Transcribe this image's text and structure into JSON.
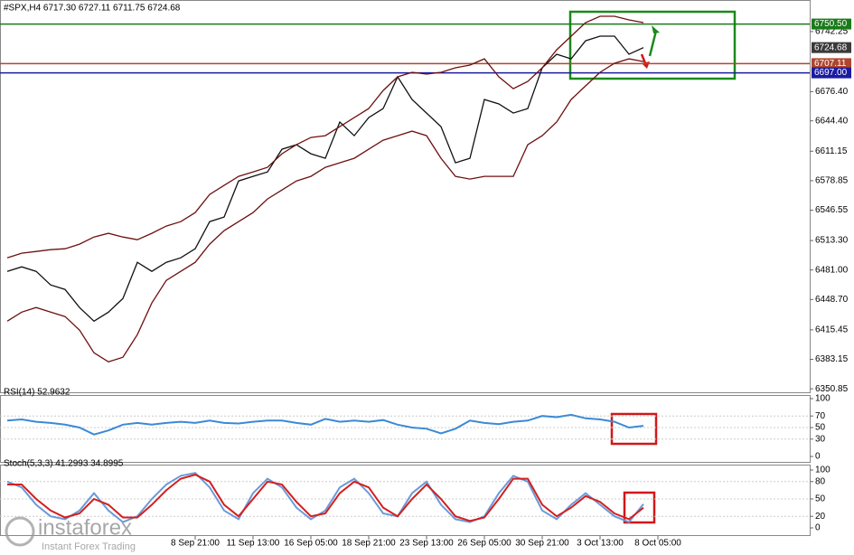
{
  "chart_data": [
    {
      "type": "line",
      "title": "#SPX,H4  6717.30 6727.11 6711.75 6724.68",
      "ylim": [
        6348,
        6759
      ],
      "yticks": [
        6742.25,
        {
          "value": 6676.4,
          "label": "6676.40"
        },
        {
          "value": 6644.4,
          "label": "6644.40"
        },
        6611.15,
        6578.85,
        6546.55,
        {
          "value": 6513.3,
          "label": "6513.30"
        },
        {
          "value": 6481,
          "label": "6481.00"
        },
        {
          "value": 6448.7,
          "label": "6448.70"
        },
        6415.45,
        6383.15,
        6350.85
      ],
      "hlines": [
        {
          "value": 6750.5,
          "label": "6750.50",
          "color": "#1a7a1a",
          "line": true
        },
        {
          "value": 6724.68,
          "label": "6724.68",
          "color": "#3a3a3a",
          "line": false
        },
        {
          "value": 6707.11,
          "label": "6707.11",
          "color": "#b0452e",
          "line": true
        },
        {
          "value": 6697,
          "label": "6697.00",
          "color": "#1c1ca0",
          "line": true
        }
      ],
      "series": [
        {
          "color": "#111111",
          "values": [
            6479.5,
            6484.5,
            6479.5,
            6464.7,
            6459.7,
            6439.9,
            6425.0,
            6434.9,
            6449.8,
            6489.4,
            6479.5,
            6489.4,
            6494.4,
            6504.3,
            6534.0,
            6539.0,
            6578.6,
            6583.6,
            6588.5,
            6613.3,
            6618.3,
            6608.4,
            6603.4,
            6643.1,
            6628.2,
            6648.0,
            6657.9,
            6692.6,
            6667.8,
            6652.9,
            6638.1,
            6598.5,
            6603.4,
            6667.8,
            6662.9,
            6652.9,
            6657.9,
            6702.5,
            6717.4,
            6712.4,
            6732.2,
            6737.2,
            6737.2,
            6717.4,
            6724.68,
            null
          ]
        },
        {
          "color": "#6e1010",
          "values": [
            6494.4,
            6499.4,
            6501.3,
            6503.3,
            6504.3,
            6509.3,
            6517.2,
            6521.2,
            6517.2,
            6514.2,
            6521.2,
            6529.1,
            6534.0,
            6543.9,
            6563.8,
            6573.7,
            6583.6,
            6588.5,
            6593.5,
            6608.4,
            6618.3,
            6626.2,
            6628.2,
            6638.1,
            6648.0,
            6657.9,
            6677.7,
            6692.6,
            6697.6,
            6695.6,
            6697.6,
            6702.5,
            6705.5,
            6712.4,
            6692.6,
            6679.7,
            6687.6,
            6702.5,
            6722.3,
            6737.2,
            6752.1,
            6759.0,
            6759.0,
            6755.0,
            6752.1,
            null
          ]
        },
        {
          "color": "#6e1010",
          "values": [
            6425.0,
            6434.9,
            6439.9,
            6434.9,
            6430.0,
            6415.1,
            6390.3,
            6380.4,
            6385.4,
            6410.2,
            6444.9,
            6469.6,
            6479.5,
            6489.4,
            6509.3,
            6524.1,
            6534.0,
            6543.9,
            6558.8,
            6568.7,
            6578.6,
            6583.6,
            6593.5,
            6598.5,
            6603.4,
            6613.3,
            6623.2,
            6628.2,
            6633.1,
            6628.2,
            6603.4,
            6583.6,
            6580.6,
            6583.6,
            6583.6,
            6583.6,
            6618.3,
            6628.2,
            6643.1,
            6667.8,
            6682.7,
            6697.6,
            6707.5,
            6712.4,
            6709.4,
            null
          ]
        }
      ]
    },
    {
      "type": "line",
      "title": "RSI(14) 52.9632",
      "ylim": [
        0,
        100
      ],
      "yticks": [
        100,
        70,
        50,
        30,
        0
      ],
      "series": [
        {
          "color": "#3a8ad6",
          "values": [
            62,
            64,
            60,
            58,
            55,
            50,
            38,
            45,
            55,
            58,
            55,
            58,
            60,
            58,
            62,
            58,
            57,
            60,
            62,
            62,
            58,
            55,
            65,
            60,
            62,
            60,
            63,
            55,
            50,
            48,
            40,
            48,
            62,
            58,
            56,
            60,
            62,
            70,
            68,
            72,
            66,
            64,
            60,
            50,
            52.96,
            null
          ]
        }
      ]
    },
    {
      "type": "line",
      "title": "Stoch(5,3,3) 41.2993 34.8995",
      "ylim": [
        0,
        100
      ],
      "yticks": [
        100,
        80,
        50,
        20,
        0
      ],
      "categories": [
        null,
        null,
        null,
        null,
        null,
        null,
        null,
        null,
        null,
        null,
        null,
        null,
        null,
        "8 Sep 21:00",
        null,
        null,
        null,
        "11 Sep 13:00",
        null,
        null,
        null,
        "16 Sep 05:00",
        null,
        null,
        null,
        "18 Sep 21:00",
        null,
        null,
        null,
        "23 Sep 13:00",
        null,
        null,
        null,
        "26 Sep 05:00",
        null,
        null,
        null,
        "30 Sep 21:00",
        null,
        null,
        null,
        "3 Oct 13:00",
        null,
        null,
        null,
        "8 Oct 05:00"
      ],
      "series": [
        {
          "color": "#6a9ad8",
          "values": [
            80,
            70,
            40,
            20,
            15,
            30,
            60,
            30,
            10,
            20,
            50,
            75,
            90,
            95,
            70,
            30,
            15,
            60,
            85,
            70,
            35,
            15,
            30,
            70,
            85,
            60,
            25,
            20,
            60,
            80,
            40,
            15,
            10,
            20,
            60,
            90,
            80,
            30,
            15,
            40,
            60,
            40,
            20,
            10,
            41.3,
            null
          ]
        },
        {
          "color": "#d41f1f",
          "values": [
            75,
            75,
            50,
            30,
            18,
            25,
            50,
            40,
            18,
            18,
            40,
            65,
            85,
            92,
            80,
            40,
            20,
            50,
            80,
            75,
            45,
            20,
            25,
            60,
            80,
            70,
            35,
            20,
            50,
            75,
            50,
            20,
            12,
            18,
            50,
            85,
            85,
            40,
            20,
            35,
            55,
            45,
            25,
            15,
            34.9,
            null
          ]
        }
      ]
    }
  ],
  "watermark": {
    "brand": "instaforex",
    "tagline": "Instant Forex Trading"
  }
}
